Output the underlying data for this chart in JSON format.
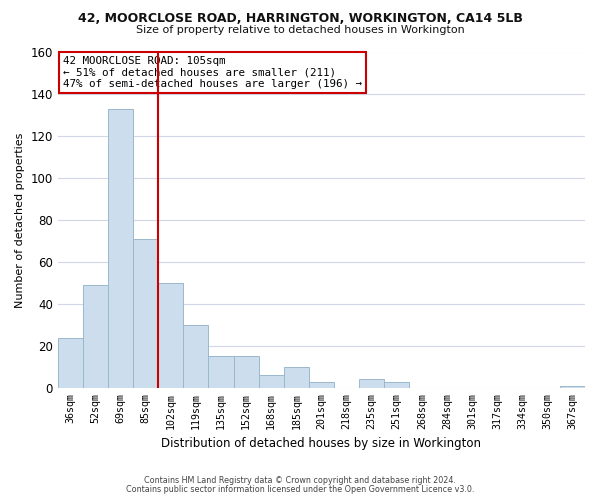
{
  "title": "42, MOORCLOSE ROAD, HARRINGTON, WORKINGTON, CA14 5LB",
  "subtitle": "Size of property relative to detached houses in Workington",
  "xlabel": "Distribution of detached houses by size in Workington",
  "ylabel": "Number of detached properties",
  "bar_labels": [
    "36sqm",
    "52sqm",
    "69sqm",
    "85sqm",
    "102sqm",
    "119sqm",
    "135sqm",
    "152sqm",
    "168sqm",
    "185sqm",
    "201sqm",
    "218sqm",
    "235sqm",
    "251sqm",
    "268sqm",
    "284sqm",
    "301sqm",
    "317sqm",
    "334sqm",
    "350sqm",
    "367sqm"
  ],
  "bar_values": [
    24,
    49,
    133,
    71,
    50,
    30,
    15,
    15,
    6,
    10,
    3,
    0,
    4,
    3,
    0,
    0,
    0,
    0,
    0,
    0,
    1
  ],
  "bar_color": "#ccdded",
  "bar_edgecolor": "#9ab8cc",
  "vline_x_idx": 3,
  "vline_color": "#cc0000",
  "annotation_title": "42 MOORCLOSE ROAD: 105sqm",
  "annotation_line1": "← 51% of detached houses are smaller (211)",
  "annotation_line2": "47% of semi-detached houses are larger (196) →",
  "annotation_box_edgecolor": "#cc0000",
  "ylim": [
    0,
    160
  ],
  "yticks": [
    0,
    20,
    40,
    60,
    80,
    100,
    120,
    140,
    160
  ],
  "footer1": "Contains HM Land Registry data © Crown copyright and database right 2024.",
  "footer2": "Contains public sector information licensed under the Open Government Licence v3.0.",
  "bg_color": "#ffffff",
  "grid_color": "#d0d8e8"
}
